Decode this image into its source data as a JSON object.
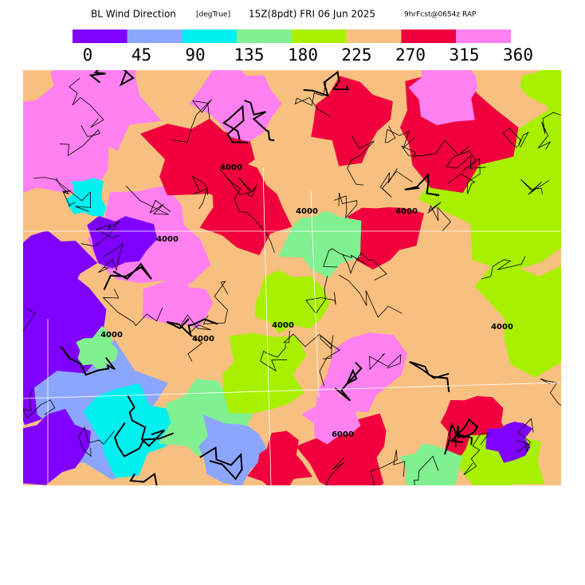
{
  "header": {
    "title": "BL Wind Direction",
    "units": "[degTrue]",
    "valid": "15Z(8pdt) FRI 06 Jun 2025",
    "forecast": "9hrFcst@0654z RAP"
  },
  "legend": {
    "colors": [
      "#8000ff",
      "#8ca6ff",
      "#00f0f0",
      "#80f090",
      "#a8f000",
      "#f8c080",
      "#f0003c",
      "#ff80f0"
    ],
    "labels": [
      0,
      45,
      90,
      135,
      180,
      225,
      270,
      315,
      360
    ]
  },
  "map": {
    "contour_labels": [
      "4000",
      "4000",
      "4000",
      "4000",
      "4000",
      "4000",
      "6000",
      "4000",
      "4000"
    ]
  }
}
